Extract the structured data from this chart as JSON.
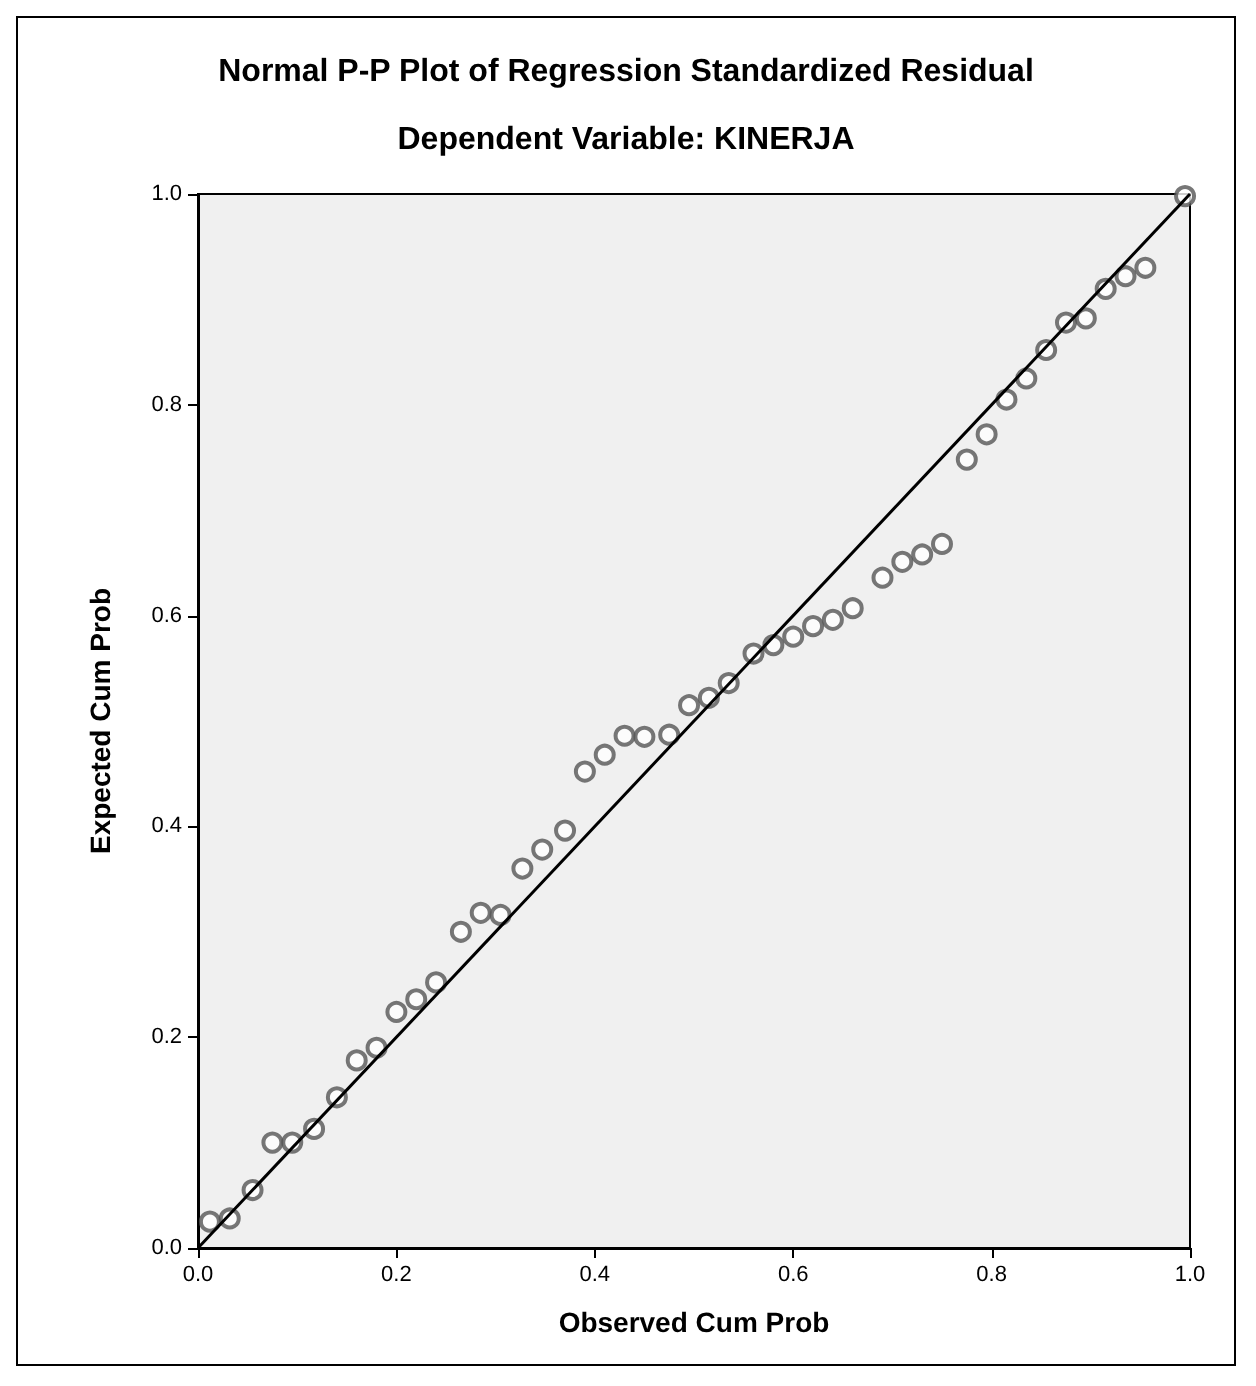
{
  "chart_data": {
    "type": "scatter",
    "title": "Normal P-P Plot of Regression Standardized Residual",
    "subtitle": "Dependent Variable: KINERJA",
    "xlabel": "Observed Cum Prob",
    "ylabel": "Expected Cum Prob",
    "xlim": [
      0,
      1
    ],
    "ylim": [
      0,
      1
    ],
    "xticks": [
      {
        "value": 0,
        "label": "0.0"
      },
      {
        "value": 0.2,
        "label": "0.2"
      },
      {
        "value": 0.4,
        "label": "0.4"
      },
      {
        "value": 0.6,
        "label": "0.6"
      },
      {
        "value": 0.8,
        "label": "0.8"
      },
      {
        "value": 1,
        "label": "1.0"
      }
    ],
    "yticks": [
      {
        "value": 0,
        "label": "0.0"
      },
      {
        "value": 0.2,
        "label": "0.2"
      },
      {
        "value": 0.4,
        "label": "0.4"
      },
      {
        "value": 0.6,
        "label": "0.6"
      },
      {
        "value": 0.8,
        "label": "0.8"
      },
      {
        "value": 1,
        "label": "1.0"
      }
    ],
    "grid": false,
    "marker": "circle",
    "series": [
      {
        "color": "#555555",
        "x": [
          0.012,
          0.032,
          0.055,
          0.075,
          0.095,
          0.117,
          0.14,
          0.16,
          0.18,
          0.2,
          0.22,
          0.24,
          0.265,
          0.285,
          0.305,
          0.327,
          0.347,
          0.37,
          0.39,
          0.41,
          0.43,
          0.45,
          0.475,
          0.495,
          0.515,
          0.535,
          0.56,
          0.58,
          0.6,
          0.62,
          0.64,
          0.66,
          0.69,
          0.71,
          0.73,
          0.75,
          0.775,
          0.795,
          0.815,
          0.835,
          0.855,
          0.875,
          0.895,
          0.915,
          0.935,
          0.955,
          0.995
        ],
        "values": [
          0.025,
          0.028,
          0.055,
          0.1,
          0.1,
          0.113,
          0.143,
          0.178,
          0.19,
          0.224,
          0.236,
          0.252,
          0.3,
          0.318,
          0.316,
          0.36,
          0.378,
          0.396,
          0.452,
          0.468,
          0.486,
          0.485,
          0.487,
          0.515,
          0.522,
          0.536,
          0.564,
          0.572,
          0.58,
          0.59,
          0.596,
          0.607,
          0.636,
          0.651,
          0.658,
          0.668,
          0.748,
          0.772,
          0.805,
          0.825,
          0.852,
          0.878,
          0.882,
          0.91,
          0.922,
          0.93,
          0.998
        ]
      },
      {
        "type": "line",
        "color": "#000000",
        "x": [
          0,
          1
        ],
        "values": [
          0,
          1
        ],
        "marker": "none",
        "line_style": "solid"
      }
    ]
  }
}
